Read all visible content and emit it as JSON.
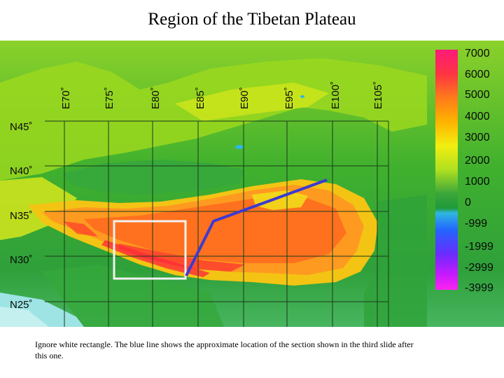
{
  "title": "Region of the Tibetan Plateau",
  "caption": "Ignore white rectangle. The blue line shows the approximate location of the section shown in the third slide after this one.",
  "map": {
    "longitude_labels": [
      "E70˚",
      "E75˚",
      "E80˚",
      "E85˚",
      "E90˚",
      "E95˚",
      "E100˚",
      "E105˚"
    ],
    "latitude_labels": [
      "N45˚",
      "N40˚",
      "N35˚",
      "N30˚",
      "N25˚"
    ],
    "colorbar": {
      "labels": [
        "7000",
        "6000",
        "5000",
        "4000",
        "3000",
        "2000",
        "1000",
        "0",
        "-999",
        "-1999",
        "-2999",
        "-3999"
      ]
    },
    "section_line_color": "#3b3bd0",
    "rectangle_color": "#f2f2f2"
  }
}
